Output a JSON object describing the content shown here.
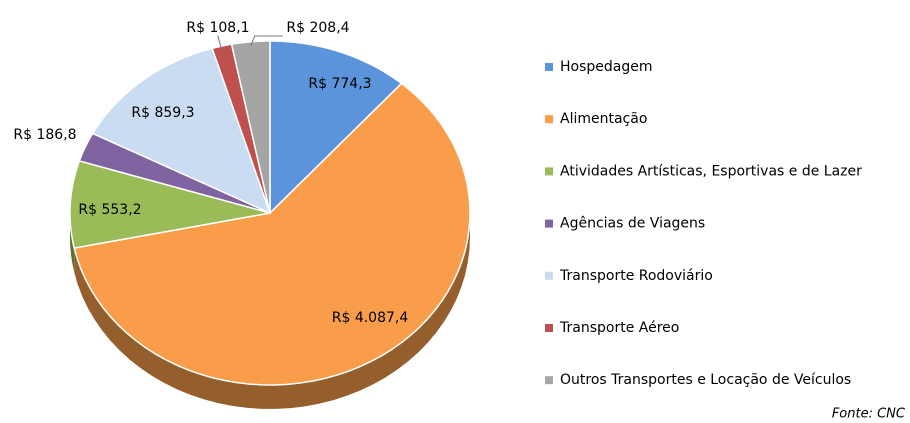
{
  "chart_data": {
    "type": "pie",
    "categories": [
      "Hospedagem",
      "Alimentação",
      "Atividades Artísticas, Esportivas e de Lazer",
      "Agências de Viagens",
      "Transporte Rodoviário",
      "Transporte Aéreo",
      "Outros Transportes e Locação de Veículos"
    ],
    "values": [
      774.3,
      4087.4,
      553.2,
      186.8,
      859.3,
      108.1,
      208.4
    ],
    "value_labels": [
      "R$ 774,3",
      "R$ 4.087,4",
      "R$ 553,2",
      "R$ 186,8",
      "R$ 859,3",
      "R$ 108,1",
      "R$ 208,4"
    ],
    "colors": [
      "#5b94db",
      "#f99d4b",
      "#9bbb59",
      "#8064a2",
      "#c9dcf1",
      "#c0504d",
      "#a5a5a5"
    ],
    "legend": "right",
    "annotation": "Fonte: CNC"
  }
}
